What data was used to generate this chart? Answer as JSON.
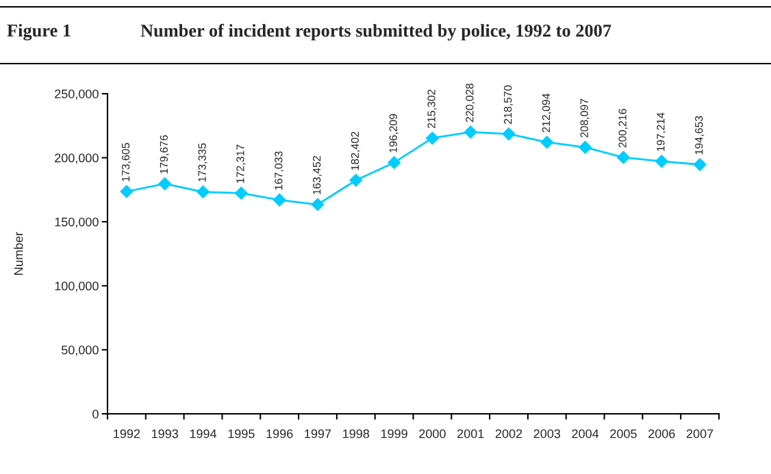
{
  "chart_data": {
    "type": "line",
    "title": "Number of incident reports submitted by police, 1992 to 2007",
    "ylabel": "Number",
    "annotations": [
      "Figure 1"
    ],
    "categories": [
      "1992",
      "1993",
      "1994",
      "1995",
      "1996",
      "1997",
      "1998",
      "1999",
      "2000",
      "2001",
      "2002",
      "2003",
      "2004",
      "2005",
      "2006",
      "2007"
    ],
    "series": [
      {
        "color": "#00ccff",
        "values": [
          173605,
          179676,
          173335,
          172317,
          167033,
          163452,
          182402,
          196209,
          215302,
          220028,
          218570,
          212094,
          208097,
          200216,
          197214,
          194653
        ],
        "value_labels": [
          "173,605",
          "179,676",
          "173,335",
          "172,317",
          "167,033",
          "163,452",
          "182,402",
          "196,209",
          "215,302",
          "220,028",
          "218,570",
          "212,094",
          "208,097",
          "200,216",
          "197,214",
          "194,653"
        ]
      }
    ],
    "ylim": [
      0,
      250000
    ],
    "yticks": [
      0,
      {
        "value": 50000,
        "label": "50,000"
      },
      {
        "value": 100000,
        "label": "100,000"
      },
      {
        "value": 150000,
        "label": "150,000"
      },
      {
        "value": 200000,
        "label": "200,000"
      },
      {
        "value": 250000,
        "label": "250,000"
      }
    ],
    "marker": "diamond",
    "line_style": "solid",
    "grid": false,
    "legend": false
  }
}
